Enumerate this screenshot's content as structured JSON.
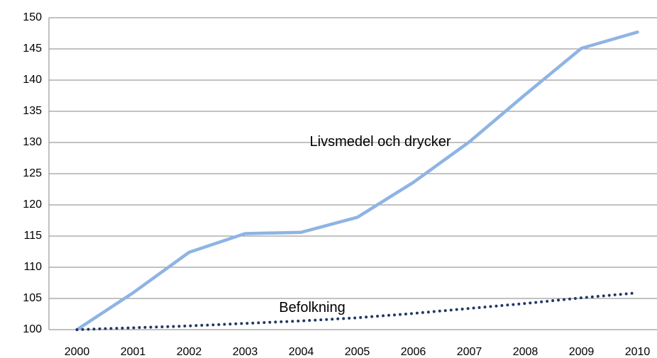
{
  "chart_data": {
    "type": "line",
    "categories": [
      "2000",
      "2001",
      "2002",
      "2003",
      "2004",
      "2005",
      "2006",
      "2007",
      "2008",
      "2009",
      "2010"
    ],
    "series": [
      {
        "name": "Livsmedel och drycker",
        "color": "#8eb4e3",
        "style": "solid",
        "values": [
          100,
          105.9,
          112.4,
          115.4,
          115.6,
          118,
          123.6,
          130.1,
          137.7,
          145.1,
          147.7
        ]
      },
      {
        "name": "Befolkning",
        "color": "#1f3864",
        "style": "dotted",
        "values": [
          100,
          100.3,
          100.6,
          101,
          101.4,
          101.9,
          102.6,
          103.4,
          104.2,
          105.1,
          105.9
        ]
      }
    ],
    "ylim": [
      100,
      150
    ],
    "yticks": [
      100,
      105,
      110,
      115,
      120,
      125,
      130,
      135,
      140,
      145,
      150
    ],
    "grid": true
  }
}
